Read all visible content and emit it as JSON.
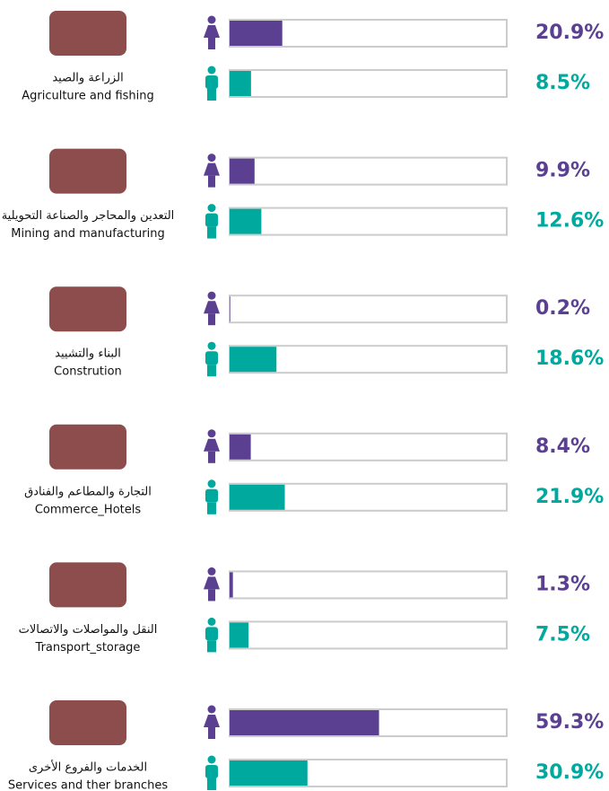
{
  "chart_data": {
    "type": "hbar-pair",
    "categories": [
      "Agriculture and fishing",
      "Mining and manufacturing",
      "Constrution",
      "Commerce_Hotels",
      "Transport_storage",
      "Services and ther branches"
    ],
    "categories_ar": [
      "الزراعة والصيد",
      "التعدين والمحاجر والصناعة التحويلية",
      "البناء والتشييد",
      "التجارة والمطاعم والفنادق",
      "النقل والمواصلات والاتصالات",
      "الخدمات والفروع الأخرى"
    ],
    "series": [
      {
        "color": "#5b3f91",
        "values": [
          20.9,
          9.9,
          0.2,
          8.4,
          1.3,
          59.3
        ],
        "value_labels": [
          "20.9%",
          "9.9%",
          "0.2%",
          "8.4%",
          "1.3%",
          "59.3%"
        ]
      },
      {
        "color": "#00a99d",
        "values": [
          8.5,
          12.6,
          18.6,
          21.9,
          7.5,
          30.9
        ],
        "value_labels": [
          "8.5%",
          "12.6%",
          "18.6%",
          "21.9%",
          "7.5%",
          "30.9%"
        ]
      }
    ],
    "xlim": [
      0,
      110
    ]
  }
}
